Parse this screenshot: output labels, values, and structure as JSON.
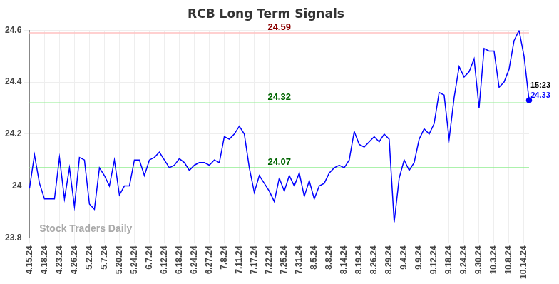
{
  "chart_data": {
    "type": "line",
    "title": "RCB Long Term Signals",
    "watermark": "Stock Traders Daily",
    "categories": [
      "4.15.24",
      null,
      null,
      "4.18.24",
      null,
      null,
      "4.23.24",
      null,
      null,
      "4.26.24",
      null,
      null,
      "5.2.24",
      null,
      null,
      "5.7.24",
      null,
      null,
      "5.20.24",
      null,
      null,
      "5.24.24",
      null,
      null,
      "6.7.24",
      null,
      null,
      "6.12.24",
      null,
      null,
      "6.18.24",
      null,
      null,
      "6.24.24",
      null,
      null,
      "6.27.24",
      null,
      null,
      "7.8.24",
      null,
      null,
      "7.11.24",
      null,
      null,
      "7.17.24",
      null,
      null,
      "7.22.24",
      null,
      null,
      "7.25.24",
      null,
      null,
      "7.31.24",
      null,
      null,
      "8.5.24",
      null,
      null,
      "8.8.24",
      null,
      null,
      "8.14.24",
      null,
      null,
      "8.19.24",
      null,
      null,
      "8.26.24",
      null,
      null,
      "8.29.24",
      null,
      null,
      "9.4.24",
      null,
      null,
      "9.9.24",
      null,
      null,
      "9.12.24",
      null,
      null,
      "9.18.24",
      null,
      null,
      "9.24.24",
      null,
      null,
      "9.30.24",
      null,
      null,
      "10.3.24",
      null,
      null,
      "10.8.24",
      null,
      null,
      "10.14.24",
      null
    ],
    "values": [
      23.99,
      24.12,
      24.01,
      23.95,
      23.95,
      23.95,
      24.11,
      23.95,
      24.07,
      23.92,
      24.11,
      24.1,
      23.93,
      23.91,
      24.07,
      24.04,
      24.0,
      24.1,
      23.965,
      24.0,
      24.0,
      24.1,
      24.1,
      24.04,
      24.1,
      24.11,
      24.13,
      24.1,
      24.07,
      24.08,
      24.105,
      24.09,
      24.06,
      24.08,
      24.09,
      24.09,
      24.08,
      24.1,
      24.09,
      24.19,
      24.18,
      24.2,
      24.23,
      24.2,
      24.07,
      23.975,
      24.04,
      24.01,
      23.98,
      23.94,
      24.03,
      23.98,
      24.04,
      24.0,
      24.05,
      23.96,
      24.02,
      23.95,
      24.0,
      24.01,
      24.05,
      24.07,
      24.08,
      24.07,
      24.1,
      24.21,
      24.16,
      24.15,
      24.17,
      24.19,
      24.17,
      24.2,
      24.18,
      23.86,
      24.03,
      24.1,
      24.06,
      24.09,
      24.18,
      24.22,
      24.2,
      24.24,
      24.36,
      24.35,
      24.18,
      24.34,
      24.46,
      24.42,
      24.44,
      24.49,
      24.3,
      24.53,
      24.52,
      24.52,
      24.38,
      24.4,
      24.45,
      24.56,
      24.6,
      24.5,
      24.33
    ],
    "color": "#0000ff",
    "lines": [
      {
        "value": 24.59,
        "label": "24.59",
        "color": "#ffc0c0"
      },
      {
        "value": 24.32,
        "label": "24.32",
        "color": "#90ee90"
      },
      {
        "value": 24.07,
        "label": "24.07",
        "color": "#90ee90"
      }
    ],
    "annotations": [
      "15:23",
      "24.33"
    ],
    "ylim": [
      23.8,
      24.6
    ],
    "yticks": [
      23.8,
      24,
      24.2,
      24.4,
      24.6
    ],
    "grid": true
  }
}
